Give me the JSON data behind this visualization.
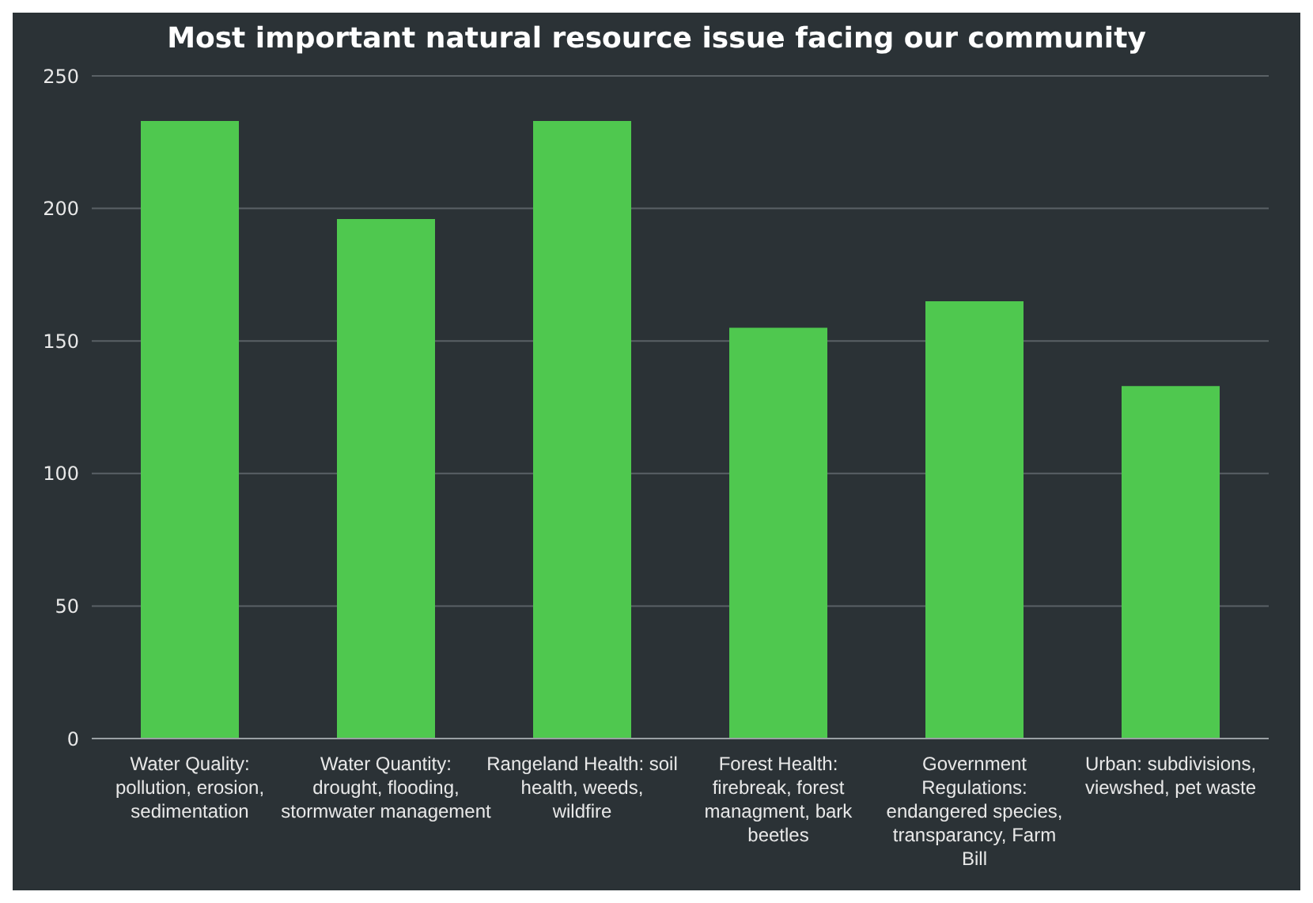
{
  "chart_data": {
    "type": "bar",
    "title": "Most important natural resource issue facing our community",
    "categories": [
      "Water Quality: pollution, erosion, sedimentation",
      "Water Quantity: drought, flooding, stormwater management",
      "Rangeland Health: soil health, weeds, wildfire",
      "Forest Health: firebreak, forest managment, bark beetles",
      "Government Regulations: endangered species, transparancy, Farm Bill",
      "Urban: subdivisions, viewshed, pet waste"
    ],
    "values": [
      233,
      196,
      233,
      155,
      165,
      133
    ],
    "color": "#4fc84f",
    "ylim": [
      0,
      250
    ],
    "yticks": [
      0,
      50,
      100,
      150,
      200,
      250
    ],
    "grid": "y"
  }
}
